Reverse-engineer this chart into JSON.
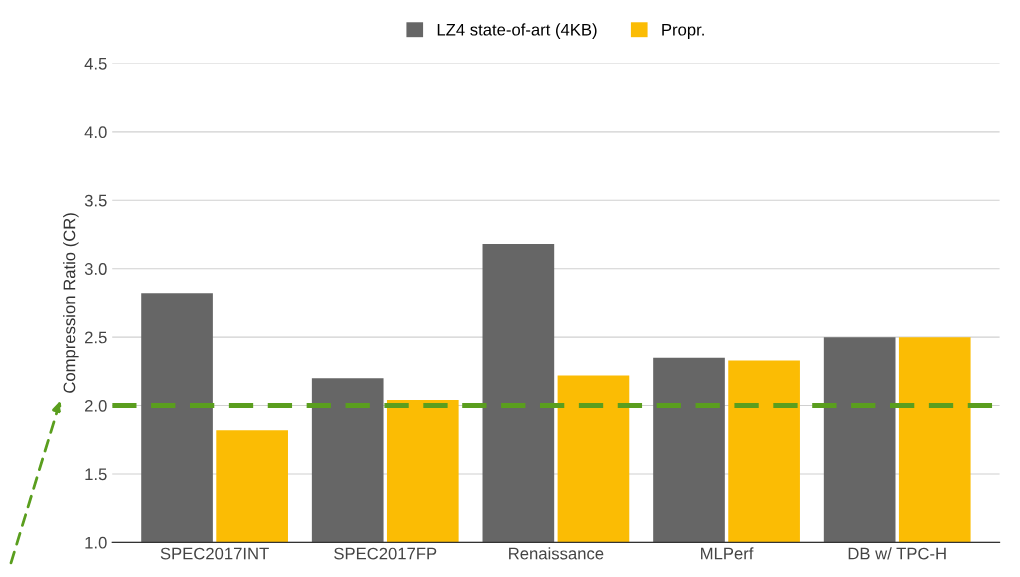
{
  "chart_data": {
    "type": "bar",
    "ylabel": "Compression Ratio (CR)",
    "categories": [
      "SPEC2017INT",
      "SPEC2017FP",
      "Renaissance",
      "MLPerf",
      "DB w/ TPC-H"
    ],
    "series": [
      {
        "name": "LZ4 state-of-art (4KB)",
        "color": "#666666",
        "values": [
          2.82,
          2.2,
          3.18,
          2.35,
          2.5
        ]
      },
      {
        "name": "Propr.",
        "color": "#fbbc04",
        "values": [
          1.82,
          2.04,
          2.22,
          2.33,
          2.5
        ]
      }
    ],
    "ylim": [
      1.0,
      4.5
    ],
    "yticks": [
      {
        "value": 1.0,
        "label": "1.0"
      },
      {
        "value": 1.5,
        "label": "1.5"
      },
      {
        "value": 2.0,
        "label": "2.0"
      },
      {
        "value": 2.5,
        "label": "2.5"
      },
      {
        "value": 3.0,
        "label": "3.0"
      },
      {
        "value": 3.5,
        "label": "3.5"
      },
      {
        "value": 4.0,
        "label": "4.0"
      },
      {
        "value": 4.5,
        "label": "4.5"
      }
    ],
    "ref_lines": [
      {
        "axis": "y",
        "value": 2.0,
        "label": null,
        "color": "#5a9e1e",
        "line_style": "dashed"
      }
    ],
    "grid": "y",
    "legend": "top"
  }
}
